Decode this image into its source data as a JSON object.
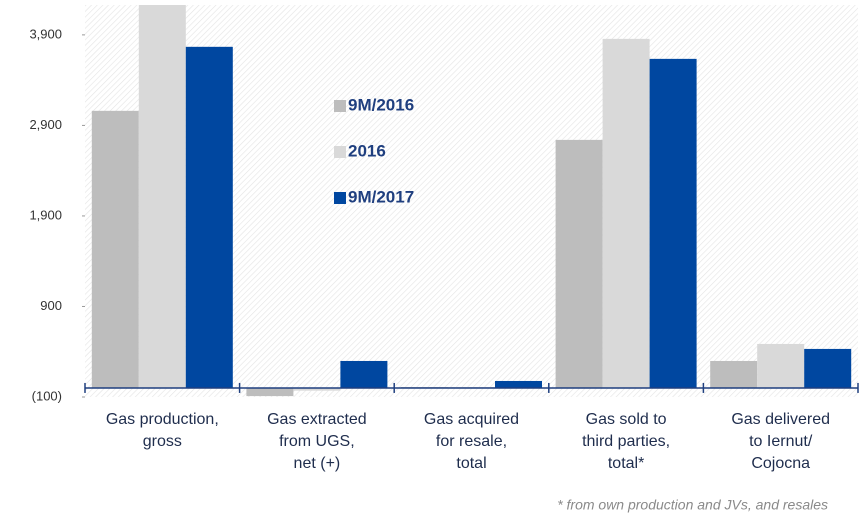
{
  "chart_data": {
    "type": "bar",
    "categories": [
      [
        "Gas production,",
        "gross"
      ],
      [
        "Gas extracted",
        "from UGS,",
        "net (+)"
      ],
      [
        "Gas acquired",
        "for resale,",
        "total"
      ],
      [
        "Gas sold to",
        "third parties,",
        "total*"
      ],
      [
        "Gas delivered",
        "to Iernut/",
        "Cojocna"
      ]
    ],
    "series": [
      {
        "name": "9M/2016",
        "color": "#bdbdbd",
        "values": [
          3061,
          -90,
          10,
          2740,
          298
        ]
      },
      {
        "name": "2016",
        "color": "#d9d9d9",
        "values": [
          4230,
          -30,
          10,
          3856,
          486
        ]
      },
      {
        "name": "9M/2017",
        "color": "#0047a0",
        "values": [
          3768,
          298,
          77,
          3635,
          431
        ]
      }
    ],
    "ylim": [
      -100,
      4230
    ],
    "yticks": [
      {
        "value": -100,
        "label": "(100)"
      },
      900,
      {
        "value": 1900,
        "label": "1,900"
      },
      {
        "value": 2900,
        "label": "2,900"
      },
      {
        "value": 3900,
        "label": "3,900"
      }
    ],
    "footnote": "* from own production and JVs, and resales"
  }
}
